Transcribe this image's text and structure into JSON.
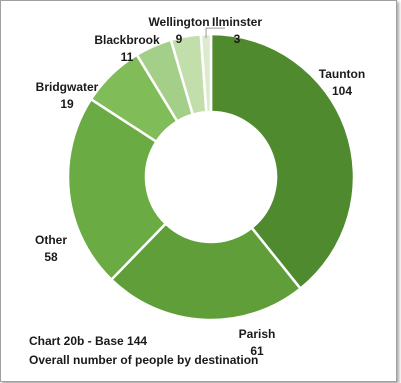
{
  "chart_data": {
    "type": "pie",
    "style": "donut",
    "categories": [
      "Taunton",
      "Parish",
      "Other",
      "Bridgwater",
      "Blackbrook",
      "Wellington",
      "Ilminster"
    ],
    "values": [
      104,
      61,
      58,
      19,
      11,
      9,
      3
    ],
    "colors": [
      "#4f8a2f",
      "#5f9e38",
      "#6aab43",
      "#80bc58",
      "#a4cf88",
      "#c2dfab",
      "#dcebd0"
    ],
    "legend": "none"
  },
  "captions": {
    "line1": "Chart 20b - Base 144",
    "line2": "Overall number of people by destination"
  }
}
